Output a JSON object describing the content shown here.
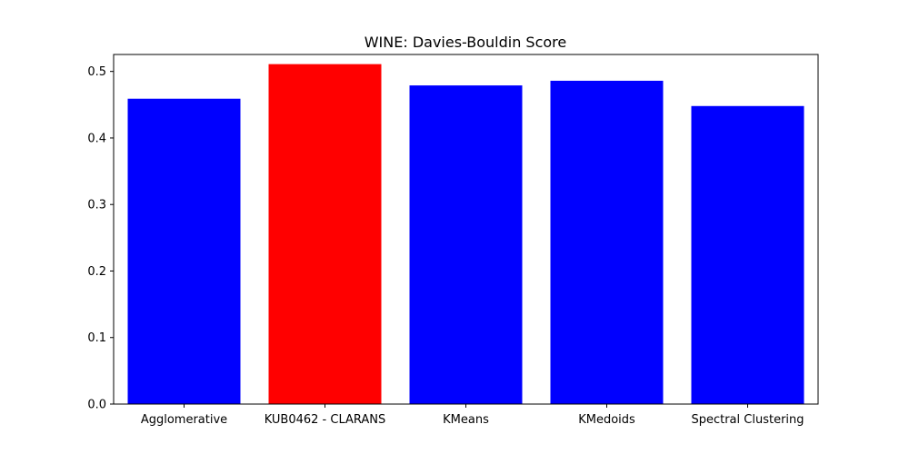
{
  "chart_data": {
    "type": "bar",
    "title": "WINE: Davies-Bouldin Score",
    "xlabel": "",
    "ylabel": "",
    "categories": [
      "Agglomerative",
      "KUB0462 - CLARANS",
      "KMeans",
      "KMedoids",
      "Spectral Clustering"
    ],
    "values": [
      0.459,
      0.511,
      0.479,
      0.486,
      0.448
    ],
    "bar_colors": [
      "#0000ff",
      "#ff0000",
      "#0000ff",
      "#0000ff",
      "#0000ff"
    ],
    "ylim": [
      0,
      0.5255
    ],
    "yticks": [
      0.0,
      0.1,
      0.2,
      0.3,
      0.4,
      0.5
    ],
    "ytick_labels": [
      "0.0",
      "0.1",
      "0.2",
      "0.3",
      "0.4",
      "0.5"
    ],
    "grid": false,
    "legend": "none"
  }
}
